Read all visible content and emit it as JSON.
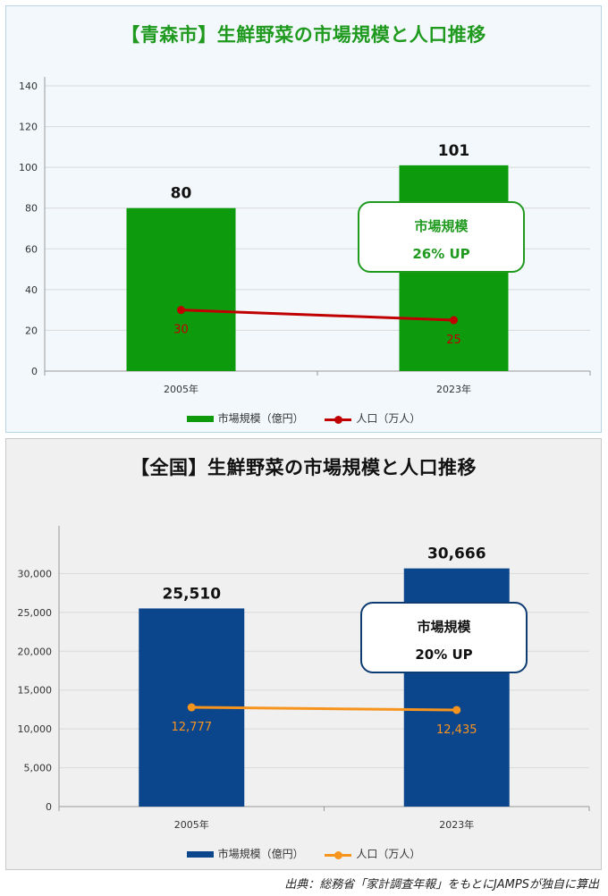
{
  "chart_data": [
    {
      "type": "bar",
      "title": "【青森市】生鮮野菜の市場規模と人口推移",
      "categories": [
        "2005年",
        "2023年"
      ],
      "ylim": [
        0,
        140
      ],
      "yticks": [
        "0",
        "20",
        "40",
        "60",
        "80",
        "100",
        "120",
        "140"
      ],
      "yticks_values": [
        0,
        20,
        40,
        60,
        80,
        100,
        120,
        140
      ],
      "series": [
        {
          "name": "市場規模（億円）",
          "kind": "bar",
          "color": "#0d9a0d",
          "values": [
            80,
            101
          ],
          "labels": [
            "80",
            "101"
          ]
        },
        {
          "name": "人口（万人）",
          "kind": "line",
          "color": "#c00000",
          "values": [
            30,
            25
          ],
          "labels": [
            "30",
            "25"
          ]
        }
      ],
      "annotation": {
        "label": "市場規模",
        "value": "26% UP"
      },
      "legend": "bottom",
      "grid": true
    },
    {
      "type": "bar",
      "title": "【全国】生鮮野菜の市場規模と人口推移",
      "categories": [
        "2005年",
        "2023年"
      ],
      "ylim": [
        0,
        35000
      ],
      "yticks": [
        "0",
        "5,000",
        "10,000",
        "15,000",
        "20,000",
        "25,000",
        "30,000"
      ],
      "yticks_values": [
        0,
        5000,
        10000,
        15000,
        20000,
        25000,
        30000
      ],
      "series": [
        {
          "name": "市場規模（億円）",
          "kind": "bar",
          "color": "#0b458c",
          "values": [
            25510,
            30666
          ],
          "labels": [
            "25,510",
            "30,666"
          ]
        },
        {
          "name": "人口（万人）",
          "kind": "line",
          "color": "#f7941d",
          "values": [
            12777,
            12435
          ],
          "labels": [
            "12,777",
            "12,435"
          ]
        }
      ],
      "annotation": {
        "label": "市場規模",
        "value": "20% UP"
      },
      "legend": "bottom",
      "grid": true
    }
  ],
  "source_note": "出典：総務省「家計調査年報」をもとにJAMPSが独自に算出"
}
